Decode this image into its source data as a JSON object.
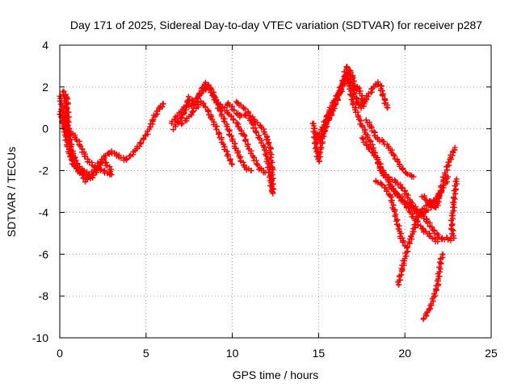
{
  "chart_data": {
    "type": "scatter",
    "title": "Day 171 of 2025, Sidereal Day-to-day VTEC variation (SDTVAR) for receiver p287",
    "xlabel": "GPS time / hours",
    "ylabel": "SDTVAR / TECUs",
    "xlim": [
      0,
      25
    ],
    "ylim": [
      -10,
      4
    ],
    "xticks": [
      "0",
      "5",
      "10",
      "15",
      "20",
      "25"
    ],
    "yticks": [
      "4",
      "2",
      "0",
      "-2",
      "-4",
      "-6",
      "-8",
      "-10"
    ],
    "grid": true,
    "marker": "+",
    "color": "#ff0000",
    "tracks": [
      [
        [
          0.0,
          1.6
        ],
        [
          0.1,
          1.2
        ],
        [
          0.2,
          0.6
        ],
        [
          0.3,
          -0.2
        ],
        [
          0.45,
          -0.8
        ],
        [
          0.6,
          -1.3
        ],
        [
          0.8,
          -1.7
        ],
        [
          1.0,
          -2.0
        ],
        [
          1.2,
          -2.1
        ],
        [
          1.5,
          -2.2
        ],
        [
          1.8,
          -2.4
        ],
        [
          2.0,
          -2.2
        ],
        [
          2.3,
          -1.8
        ],
        [
          2.6,
          -1.3
        ],
        [
          3.0,
          -1.1
        ],
        [
          3.4,
          -1.3
        ],
        [
          3.8,
          -1.5
        ],
        [
          4.2,
          -1.2
        ],
        [
          4.6,
          -0.8
        ],
        [
          5.0,
          -0.3
        ],
        [
          5.3,
          0.2
        ],
        [
          5.5,
          0.6
        ],
        [
          5.8,
          1.0
        ],
        [
          6.0,
          1.2
        ]
      ],
      [
        [
          0.2,
          1.8
        ],
        [
          0.3,
          1.5
        ],
        [
          0.35,
          0.8
        ],
        [
          0.4,
          0.2
        ],
        [
          0.55,
          -0.4
        ],
        [
          0.7,
          -1.0
        ],
        [
          0.9,
          -1.5
        ],
        [
          1.1,
          -1.8
        ],
        [
          1.4,
          -2.0
        ],
        [
          1.7,
          -2.2
        ],
        [
          2.0,
          -2.0
        ],
        [
          2.3,
          -1.6
        ],
        [
          2.6,
          -1.6
        ],
        [
          2.9,
          -1.9
        ],
        [
          3.0,
          -2.2
        ]
      ],
      [
        [
          0.4,
          1.6
        ],
        [
          0.45,
          1.0
        ],
        [
          0.5,
          0.2
        ],
        [
          0.55,
          -0.6
        ],
        [
          0.7,
          -1.2
        ],
        [
          0.9,
          -1.7
        ],
        [
          1.1,
          -2.0
        ],
        [
          1.3,
          -2.2
        ],
        [
          1.5,
          -2.5
        ],
        [
          1.7,
          -2.3
        ]
      ],
      [
        [
          0.0,
          0.8
        ],
        [
          0.1,
          0.5
        ],
        [
          0.25,
          0.1
        ],
        [
          0.45,
          -0.2
        ],
        [
          0.7,
          -0.2
        ],
        [
          1.0,
          -0.5
        ],
        [
          1.3,
          -1.0
        ],
        [
          1.6,
          -1.5
        ],
        [
          2.0,
          -1.8
        ],
        [
          2.5,
          -2.0
        ],
        [
          2.9,
          -2.2
        ]
      ],
      [
        [
          6.5,
          0.3
        ],
        [
          6.8,
          0.6
        ],
        [
          7.1,
          0.9
        ],
        [
          7.4,
          1.2
        ],
        [
          7.7,
          1.0
        ],
        [
          8.0,
          1.5
        ],
        [
          8.3,
          2.0
        ],
        [
          8.5,
          2.2
        ],
        [
          8.8,
          1.7
        ],
        [
          9.1,
          1.3
        ],
        [
          9.4,
          1.0
        ],
        [
          9.7,
          0.8
        ],
        [
          10.0,
          0.5
        ],
        [
          10.3,
          0.2
        ],
        [
          10.7,
          -0.4
        ],
        [
          11.0,
          -1.0
        ],
        [
          11.3,
          -1.5
        ],
        [
          11.6,
          -1.9
        ],
        [
          11.9,
          -2.1
        ]
      ],
      [
        [
          6.6,
          0.0
        ],
        [
          6.9,
          0.4
        ],
        [
          7.2,
          0.7
        ],
        [
          7.5,
          1.5
        ],
        [
          7.8,
          1.2
        ],
        [
          8.1,
          1.6
        ],
        [
          8.4,
          1.9
        ],
        [
          8.7,
          2.0
        ],
        [
          9.0,
          1.5
        ],
        [
          9.3,
          0.8
        ],
        [
          9.6,
          0.3
        ],
        [
          9.9,
          -0.3
        ],
        [
          10.2,
          -0.9
        ],
        [
          10.5,
          -1.5
        ],
        [
          10.8,
          -1.9
        ],
        [
          11.1,
          -2.0
        ]
      ],
      [
        [
          7.0,
          0.2
        ],
        [
          7.3,
          0.4
        ],
        [
          7.6,
          0.7
        ],
        [
          7.9,
          1.0
        ],
        [
          8.2,
          1.3
        ],
        [
          8.5,
          1.0
        ],
        [
          8.8,
          0.5
        ],
        [
          9.1,
          0.0
        ],
        [
          9.4,
          -0.6
        ],
        [
          9.7,
          -1.2
        ],
        [
          10.0,
          -1.7
        ]
      ],
      [
        [
          9.5,
          1.0
        ],
        [
          9.8,
          1.2
        ],
        [
          10.1,
          0.9
        ],
        [
          10.4,
          0.6
        ],
        [
          10.7,
          0.7
        ],
        [
          11.0,
          0.5
        ],
        [
          11.3,
          0.0
        ],
        [
          11.6,
          -0.5
        ],
        [
          11.9,
          -1.0
        ],
        [
          12.1,
          -1.8
        ],
        [
          12.3,
          -3.0
        ]
      ],
      [
        [
          10.2,
          1.3
        ],
        [
          10.5,
          1.1
        ],
        [
          10.8,
          0.9
        ],
        [
          11.1,
          0.6
        ],
        [
          11.4,
          0.3
        ],
        [
          11.7,
          0.1
        ],
        [
          12.0,
          -0.4
        ],
        [
          12.2,
          -1.0
        ],
        [
          12.3,
          -2.0
        ],
        [
          12.35,
          -3.1
        ]
      ],
      [
        [
          14.7,
          0.3
        ],
        [
          14.8,
          -0.6
        ],
        [
          14.9,
          -1.2
        ],
        [
          15.0,
          -1.6
        ],
        [
          15.1,
          -1.0
        ],
        [
          15.3,
          -0.2
        ],
        [
          15.5,
          0.3
        ],
        [
          15.8,
          0.8
        ],
        [
          16.0,
          1.2
        ],
        [
          16.2,
          1.6
        ],
        [
          16.4,
          2.2
        ],
        [
          16.5,
          2.6
        ],
        [
          16.6,
          3.0
        ],
        [
          16.8,
          2.8
        ],
        [
          17.0,
          2.4
        ],
        [
          17.1,
          1.8
        ],
        [
          17.3,
          2.0
        ],
        [
          17.6,
          1.3
        ],
        [
          17.9,
          1.6
        ],
        [
          18.2,
          2.0
        ],
        [
          18.4,
          2.2
        ],
        [
          18.6,
          2.0
        ],
        [
          18.8,
          1.4
        ],
        [
          19.0,
          1.0
        ]
      ],
      [
        [
          14.9,
          -0.2
        ],
        [
          15.0,
          -0.6
        ],
        [
          15.2,
          0.0
        ],
        [
          15.5,
          0.6
        ],
        [
          15.8,
          1.2
        ],
        [
          16.1,
          1.6
        ],
        [
          16.3,
          1.8
        ],
        [
          16.5,
          2.4
        ],
        [
          16.7,
          2.7
        ],
        [
          16.9,
          2.2
        ],
        [
          17.1,
          1.6
        ],
        [
          17.3,
          1.2
        ],
        [
          17.5,
          1.0
        ],
        [
          17.7,
          1.3
        ]
      ],
      [
        [
          15.2,
          -0.4
        ],
        [
          15.4,
          0.2
        ],
        [
          15.7,
          0.8
        ],
        [
          16.0,
          1.4
        ],
        [
          16.3,
          2.0
        ],
        [
          16.6,
          2.5
        ],
        [
          16.8,
          2.0
        ],
        [
          17.0,
          1.2
        ],
        [
          17.3,
          0.6
        ],
        [
          17.5,
          0.2
        ],
        [
          17.8,
          -0.3
        ],
        [
          18.1,
          -0.8
        ],
        [
          18.4,
          -1.5
        ],
        [
          18.6,
          -2.0
        ],
        [
          18.8,
          -2.2
        ],
        [
          19.2,
          -2.4
        ],
        [
          19.6,
          -2.6
        ],
        [
          20.0,
          -3.0
        ],
        [
          20.4,
          -3.6
        ],
        [
          20.8,
          -4.0
        ],
        [
          21.2,
          -4.3
        ],
        [
          21.6,
          -4.8
        ],
        [
          22.0,
          -5.2
        ],
        [
          22.3,
          -5.3
        ]
      ],
      [
        [
          17.8,
          0.4
        ],
        [
          18.1,
          0.0
        ],
        [
          18.4,
          -0.5
        ],
        [
          18.7,
          -0.6
        ],
        [
          19.0,
          -0.8
        ],
        [
          19.3,
          -1.2
        ],
        [
          19.6,
          -1.6
        ],
        [
          19.9,
          -2.0
        ],
        [
          20.2,
          -2.2
        ],
        [
          20.5,
          -2.3
        ]
      ],
      [
        [
          17.5,
          -0.4
        ],
        [
          17.8,
          -0.8
        ],
        [
          18.0,
          -1.0
        ],
        [
          18.3,
          -1.3
        ],
        [
          18.6,
          -1.8
        ],
        [
          18.9,
          -2.3
        ],
        [
          19.2,
          -2.8
        ],
        [
          19.5,
          -3.1
        ],
        [
          19.8,
          -3.3
        ],
        [
          20.1,
          -3.6
        ],
        [
          20.4,
          -3.8
        ],
        [
          20.7,
          -4.0
        ],
        [
          21.0,
          -4.1
        ],
        [
          21.3,
          -3.9
        ],
        [
          21.6,
          -3.7
        ],
        [
          21.9,
          -3.3
        ],
        [
          22.2,
          -2.8
        ],
        [
          22.4,
          -2.5
        ],
        [
          22.5,
          -2.3
        ]
      ],
      [
        [
          18.3,
          -2.5
        ],
        [
          18.6,
          -2.6
        ],
        [
          18.9,
          -2.9
        ],
        [
          19.2,
          -3.3
        ],
        [
          19.4,
          -4.0
        ],
        [
          19.6,
          -4.6
        ],
        [
          19.8,
          -5.2
        ],
        [
          20.0,
          -5.6
        ]
      ],
      [
        [
          19.2,
          -2.7
        ],
        [
          19.5,
          -3.1
        ],
        [
          19.8,
          -3.4
        ],
        [
          20.1,
          -3.7
        ],
        [
          20.4,
          -4.1
        ],
        [
          20.7,
          -4.5
        ],
        [
          21.0,
          -4.8
        ],
        [
          21.3,
          -5.0
        ],
        [
          21.6,
          -5.2
        ],
        [
          21.9,
          -5.4
        ]
      ],
      [
        [
          19.6,
          -7.5
        ],
        [
          19.8,
          -6.8
        ],
        [
          20.0,
          -6.2
        ],
        [
          20.2,
          -5.6
        ],
        [
          20.4,
          -5.1
        ],
        [
          20.6,
          -4.6
        ],
        [
          20.8,
          -4.2
        ],
        [
          21.0,
          -3.9
        ],
        [
          21.3,
          -3.6
        ],
        [
          21.6,
          -3.5
        ],
        [
          21.9,
          -3.3
        ],
        [
          22.1,
          -3.0
        ]
      ],
      [
        [
          21.1,
          -9.1
        ],
        [
          21.3,
          -8.8
        ],
        [
          21.5,
          -8.5
        ],
        [
          21.7,
          -8.0
        ],
        [
          21.9,
          -7.4
        ],
        [
          22.0,
          -6.8
        ],
        [
          22.1,
          -6.2
        ],
        [
          22.2,
          -6.0
        ]
      ],
      [
        [
          21.0,
          -3.2
        ],
        [
          21.3,
          -3.4
        ],
        [
          21.6,
          -3.6
        ],
        [
          21.8,
          -3.8
        ],
        [
          21.9,
          -3.6
        ],
        [
          22.0,
          -3.2
        ],
        [
          22.1,
          -2.9
        ],
        [
          22.2,
          -2.5
        ],
        [
          22.4,
          -2.0
        ],
        [
          22.6,
          -1.5
        ],
        [
          22.8,
          -1.1
        ],
        [
          22.9,
          -0.9
        ]
      ],
      [
        [
          22.4,
          -5.2
        ],
        [
          22.6,
          -5.3
        ],
        [
          22.8,
          -5.2
        ],
        [
          22.7,
          -4.6
        ],
        [
          22.8,
          -3.8
        ],
        [
          22.9,
          -3.0
        ],
        [
          23.0,
          -2.4
        ]
      ]
    ]
  }
}
